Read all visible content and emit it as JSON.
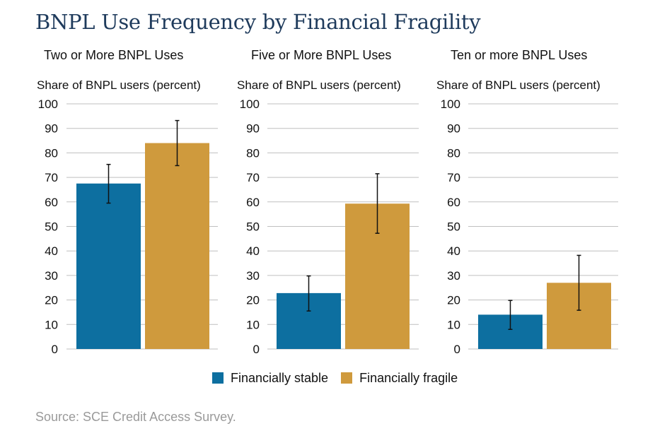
{
  "title": "BNPL Use Frequency by Financial Fragility",
  "source": "Source: SCE Credit Access Survey.",
  "colors": {
    "stable": "#0d6fa0",
    "fragile": "#cf9a3d"
  },
  "legend": {
    "stable_label": "Financially stable",
    "fragile_label": "Financially fragile"
  },
  "chart_data": [
    {
      "type": "bar",
      "title": "Two or More BNPL Uses",
      "ylabel": "Share of BNPL users (percent)",
      "ylim": [
        0,
        100
      ],
      "yticks": [
        0,
        10,
        20,
        30,
        40,
        50,
        60,
        70,
        80,
        90,
        100
      ],
      "grid": true,
      "series": [
        {
          "name": "Financially stable",
          "value": 67.5,
          "error": [
            59.5,
            75.3
          ]
        },
        {
          "name": "Financially fragile",
          "value": 84,
          "error": [
            74.8,
            93.2
          ]
        }
      ]
    },
    {
      "type": "bar",
      "title": "Five or More BNPL Uses",
      "ylabel": "Share of BNPL users (percent)",
      "ylim": [
        0,
        100
      ],
      "yticks": [
        0,
        10,
        20,
        30,
        40,
        50,
        60,
        70,
        80,
        90,
        100
      ],
      "grid": true,
      "series": [
        {
          "name": "Financially stable",
          "value": 22.8,
          "error": [
            15.5,
            29.8
          ]
        },
        {
          "name": "Financially fragile",
          "value": 59.3,
          "error": [
            47.2,
            71.5
          ]
        }
      ]
    },
    {
      "type": "bar",
      "title": "Ten or more BNPL Uses",
      "ylabel": "Share of BNPL users (percent)",
      "ylim": [
        0,
        100
      ],
      "yticks": [
        0,
        10,
        20,
        30,
        40,
        50,
        60,
        70,
        80,
        90,
        100
      ],
      "grid": true,
      "series": [
        {
          "name": "Financially stable",
          "value": 14,
          "error": [
            8,
            19.8
          ]
        },
        {
          "name": "Financially fragile",
          "value": 27,
          "error": [
            15.8,
            38.2
          ]
        }
      ]
    }
  ]
}
